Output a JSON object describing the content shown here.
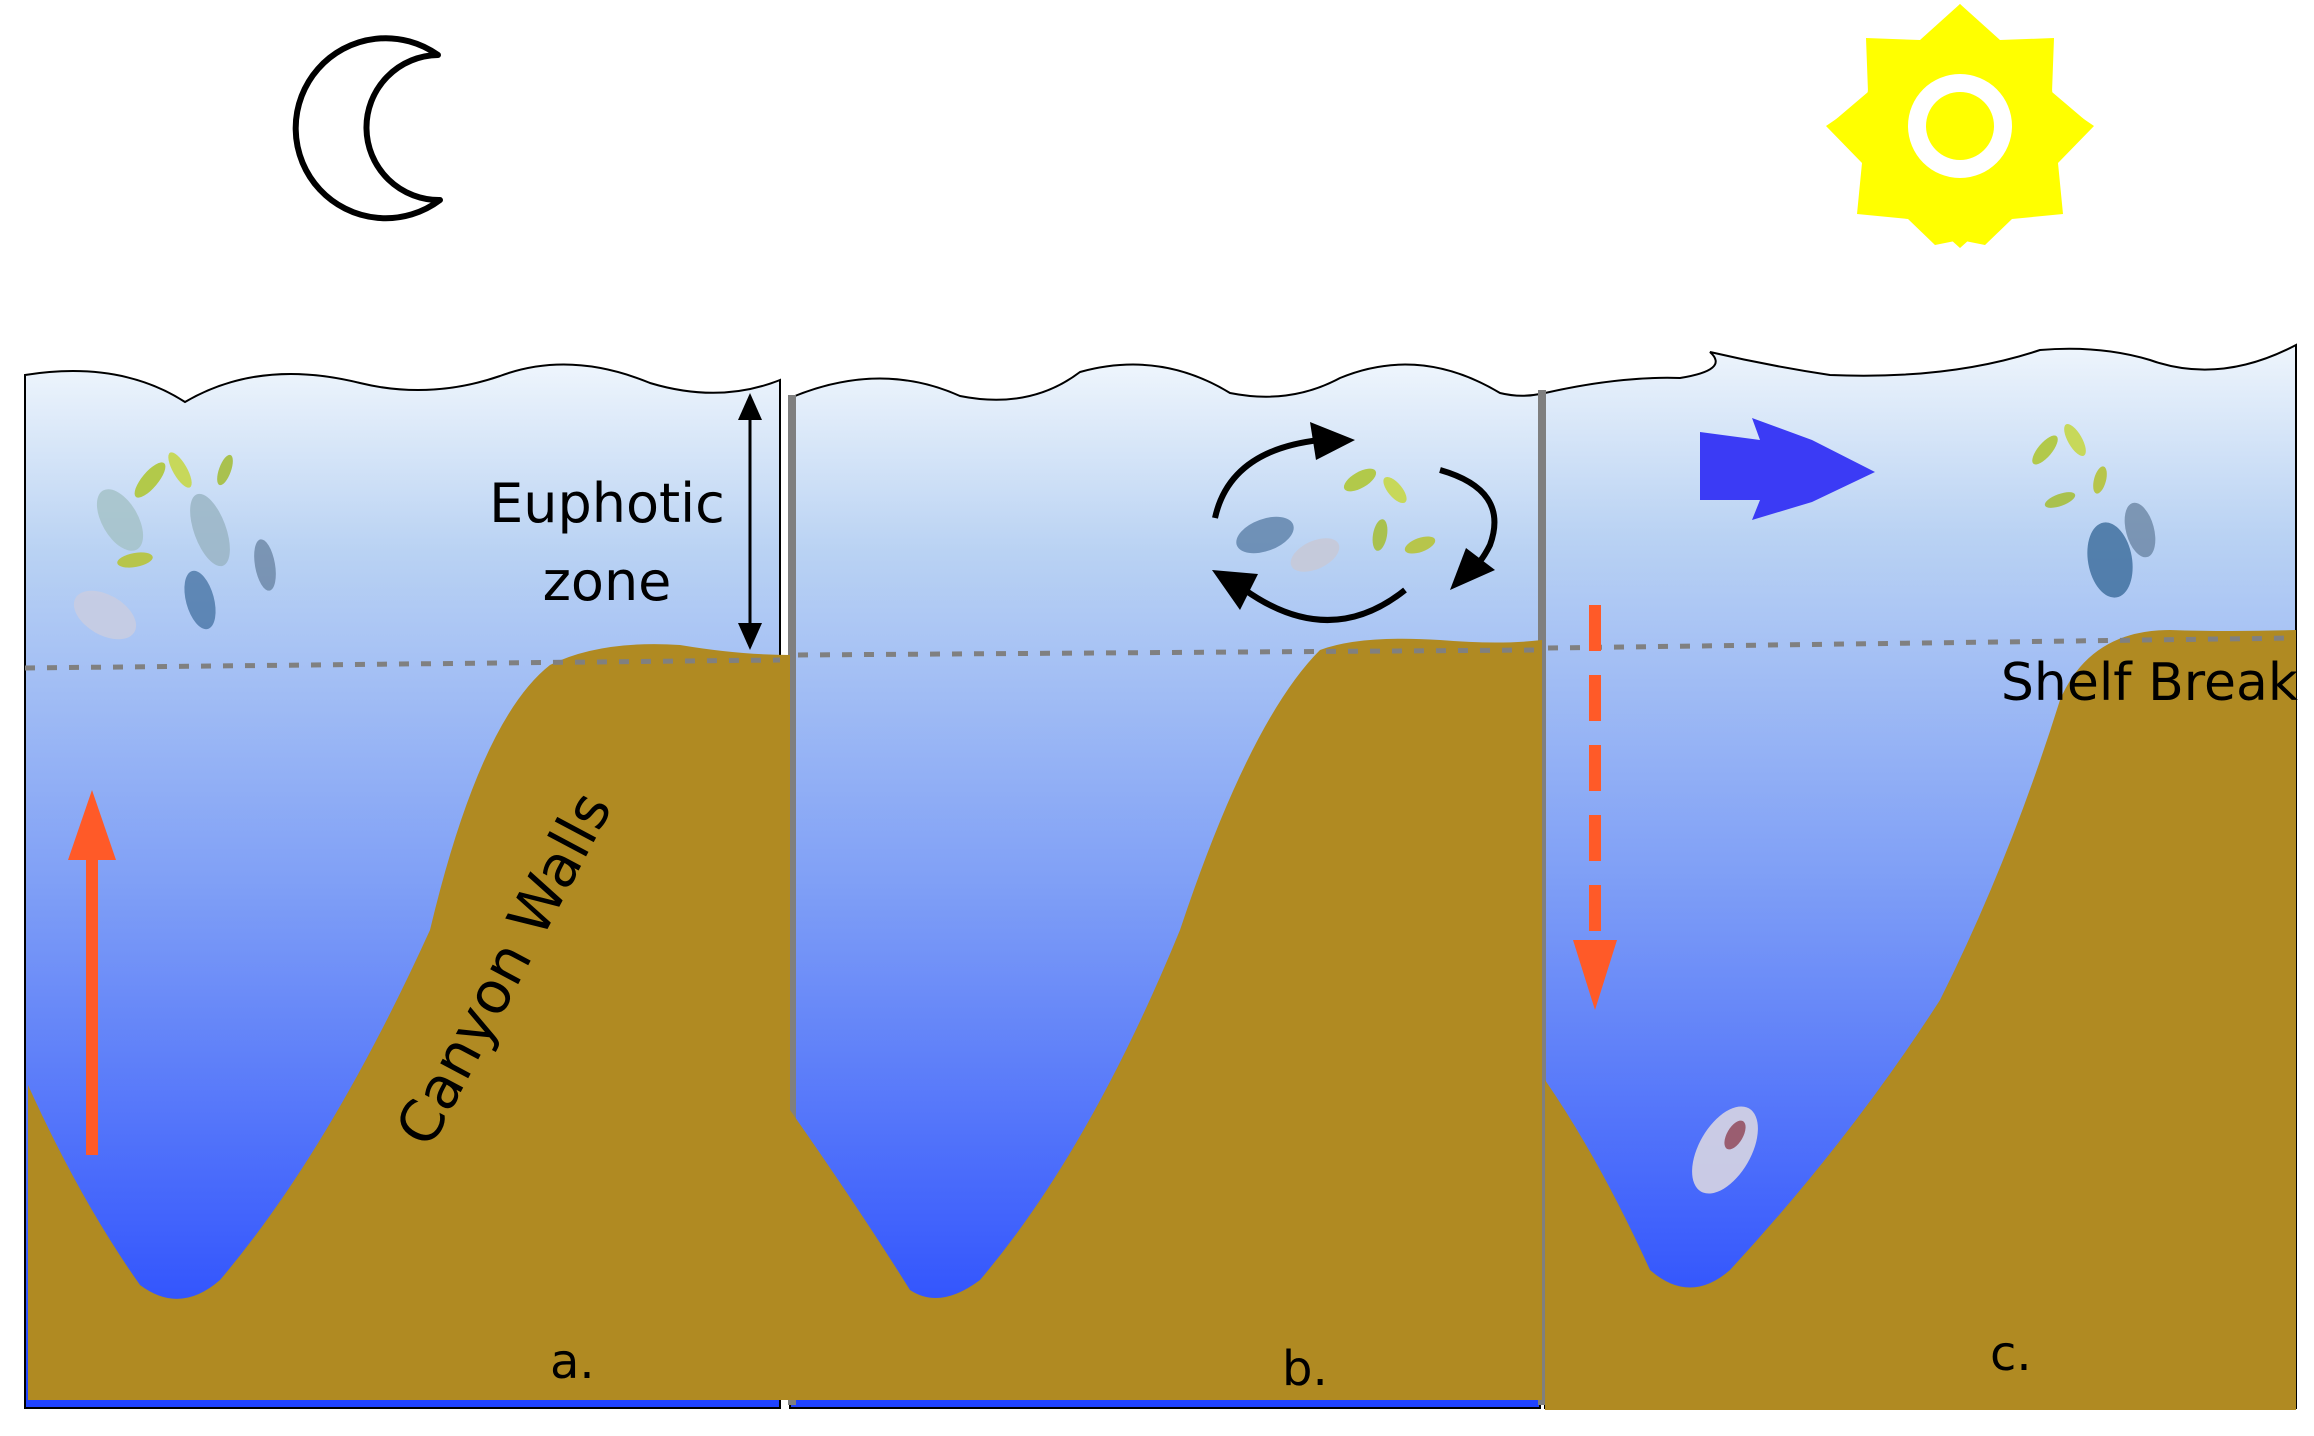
{
  "labels": {
    "euphotic_line1": "Euphotic",
    "euphotic_line2": "zone",
    "canyon_walls": "Canyon Walls",
    "shelf_break": "Shelf Break",
    "panel_a": "a.",
    "panel_b": "b.",
    "panel_c": "c."
  },
  "colors": {
    "water_top": "#e8f1fb",
    "water_bottom": "#1f42ff",
    "sediment": "#b08a22",
    "migration_arrow": "#ff5a28",
    "current_arrow": "#3b3bf5",
    "sun": "#ffff00",
    "shelf_line": "#808080"
  },
  "icons": {
    "moon": "crescent-moon-icon",
    "sun": "sun-icon"
  }
}
